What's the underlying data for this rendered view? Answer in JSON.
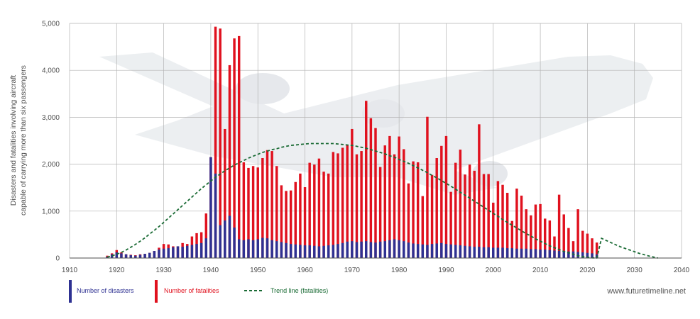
{
  "chart_data": {
    "type": "bar",
    "ylabel_lines": [
      "Disasters and fatalities involving aircraft",
      "capable of carrying more than six passengers"
    ],
    "xlim": [
      1910,
      2040
    ],
    "ylim": [
      0,
      5000
    ],
    "x_ticks": [
      "1910",
      "1920",
      "1930",
      "1940",
      "1950",
      "1960",
      "1970",
      "1980",
      "1990",
      "2000",
      "2010",
      "2020",
      "2030",
      "2040"
    ],
    "y_ticks": [
      "0",
      "1,000",
      "2,000",
      "3,000",
      "4,000",
      "5,000"
    ],
    "grid": true,
    "legend_position": "bottom",
    "colors": {
      "disasters": "#2e3192",
      "fatalities": "#e0111e",
      "trend": "#1a6b35",
      "grid": "#b3b3b3"
    },
    "legend": {
      "disasters": "Number of disasters",
      "fatalities": "Number of fatalities",
      "trend": "Trend line (fatalities)"
    },
    "watermark": "www.futuretimeline.net",
    "years": [
      1918,
      1919,
      1920,
      1921,
      1922,
      1923,
      1924,
      1925,
      1926,
      1927,
      1928,
      1929,
      1930,
      1931,
      1932,
      1933,
      1934,
      1935,
      1936,
      1937,
      1938,
      1939,
      1940,
      1941,
      1942,
      1943,
      1944,
      1945,
      1946,
      1947,
      1948,
      1949,
      1950,
      1951,
      1952,
      1953,
      1954,
      1955,
      1956,
      1957,
      1958,
      1959,
      1960,
      1961,
      1962,
      1963,
      1964,
      1965,
      1966,
      1967,
      1968,
      1969,
      1970,
      1971,
      1972,
      1973,
      1974,
      1975,
      1976,
      1977,
      1978,
      1979,
      1980,
      1981,
      1982,
      1983,
      1984,
      1985,
      1986,
      1987,
      1988,
      1989,
      1990,
      1991,
      1992,
      1993,
      1994,
      1995,
      1996,
      1997,
      1998,
      1999,
      2000,
      2001,
      2002,
      2003,
      2004,
      2005,
      2006,
      2007,
      2008,
      2009,
      2010,
      2011,
      2012,
      2013,
      2014,
      2015,
      2016,
      2017,
      2018,
      2019,
      2020,
      2021,
      2022
    ],
    "series": [
      {
        "name": "Number of disasters",
        "values": [
          30,
          80,
          120,
          100,
          80,
          60,
          50,
          70,
          90,
          110,
          150,
          180,
          200,
          210,
          230,
          250,
          240,
          260,
          280,
          300,
          320,
          420,
          2150,
          1800,
          700,
          800,
          900,
          650,
          400,
          380,
          400,
          380,
          400,
          430,
          420,
          380,
          360,
          340,
          320,
          300,
          290,
          280,
          270,
          270,
          260,
          250,
          260,
          270,
          280,
          300,
          320,
          350,
          360,
          340,
          350,
          360,
          340,
          330,
          350,
          360,
          380,
          400,
          380,
          360,
          330,
          310,
          300,
          290,
          280,
          300,
          310,
          320,
          300,
          290,
          280,
          270,
          260,
          250,
          240,
          240,
          230,
          230,
          220,
          220,
          220,
          210,
          210,
          200,
          200,
          200,
          190,
          190,
          180,
          180,
          170,
          160,
          150,
          150,
          140,
          140,
          130,
          120,
          110,
          100,
          80
        ]
      },
      {
        "name": "Number of fatalities",
        "values": [
          50,
          100,
          170,
          120,
          80,
          70,
          60,
          80,
          90,
          100,
          150,
          220,
          300,
          290,
          250,
          230,
          320,
          300,
          460,
          530,
          550,
          950,
          1100,
          4930,
          4890,
          2750,
          4110,
          4680,
          4730,
          2040,
          1920,
          1960,
          1930,
          2130,
          2300,
          2280,
          1960,
          1550,
          1430,
          1440,
          1620,
          1800,
          1510,
          2030,
          1990,
          2120,
          1840,
          1800,
          2260,
          2230,
          2350,
          2410,
          2750,
          2210,
          2280,
          3350,
          2980,
          2770,
          1940,
          2400,
          2600,
          2210,
          2590,
          2320,
          1590,
          2060,
          2040,
          1320,
          3010,
          1770,
          2130,
          2390,
          2600,
          1410,
          2030,
          2310,
          1780,
          1990,
          1860,
          2850,
          1790,
          1790,
          1180,
          1640,
          1560,
          1390,
          790,
          1480,
          1330,
          1040,
          910,
          1140,
          1150,
          840,
          800,
          460,
          1350,
          930,
          640,
          360,
          1040,
          580,
          520,
          420,
          330
        ]
      },
      {
        "name": "Trend line (fatalities)",
        "values": [
          20,
          45,
          80,
          120,
          170,
          230,
          290,
          360,
          430,
          510,
          590,
          670,
          760,
          850,
          940,
          1030,
          1120,
          1210,
          1300,
          1390,
          1480,
          1560,
          1640,
          1720,
          1790,
          1860,
          1920,
          1980,
          2030,
          2080,
          2130,
          2170,
          2210,
          2250,
          2280,
          2310,
          2330,
          2360,
          2380,
          2400,
          2410,
          2420,
          2430,
          2440,
          2440,
          2440,
          2440,
          2440,
          2440,
          2430,
          2420,
          2410,
          2400,
          2380,
          2360,
          2340,
          2310,
          2280,
          2250,
          2220,
          2180,
          2150,
          2100,
          2060,
          2020,
          1970,
          1920,
          1870,
          1820,
          1760,
          1710,
          1650,
          1590,
          1530,
          1470,
          1400,
          1340,
          1280,
          1210,
          1150,
          1080,
          1020,
          950,
          890,
          820,
          760,
          700,
          640,
          580,
          520,
          470,
          410,
          360,
          310,
          260,
          220,
          180,
          140,
          110,
          80,
          50,
          30,
          15,
          5,
          0
        ]
      }
    ]
  }
}
